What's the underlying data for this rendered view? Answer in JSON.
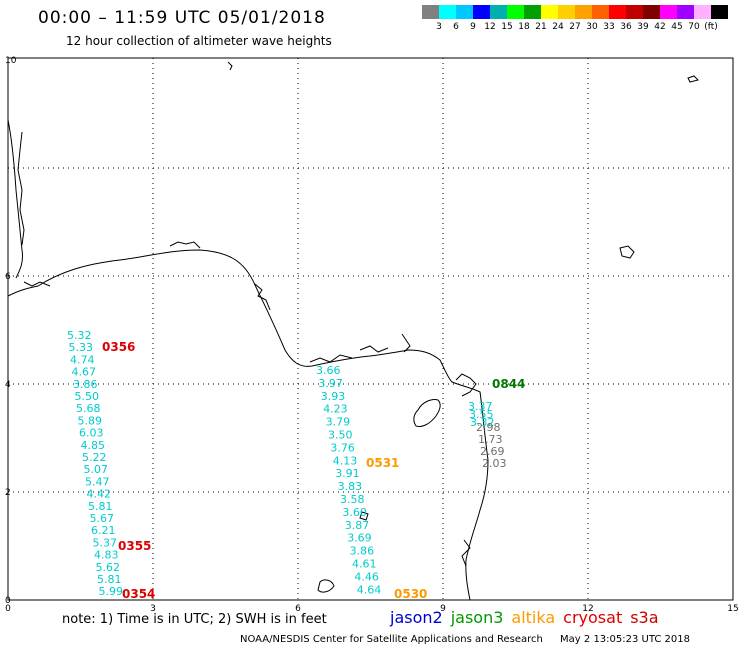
{
  "header": {
    "title": "00:00 – 11:59 UTC 05/01/2018",
    "subtitle": "12 hour collection of altimeter wave heights"
  },
  "color_scale": {
    "colors": [
      "#808080",
      "#00ffff",
      "#00c8ff",
      "#0000ff",
      "#00b0b0",
      "#00ff00",
      "#00a000",
      "#ffff00",
      "#ffd000",
      "#ffa000",
      "#ff6000",
      "#ff0000",
      "#c00000",
      "#800000",
      "#ff00ff",
      "#a000ff",
      "#ffb0ff",
      "#000000"
    ],
    "labels": [
      "3",
      "6",
      "9",
      "12",
      "15",
      "18",
      "21",
      "24",
      "27",
      "30",
      "33",
      "36",
      "39",
      "42",
      "45",
      "70",
      "(ft)"
    ]
  },
  "map": {
    "x_ticks": [
      "0",
      "3",
      "6",
      "9",
      "12",
      "15"
    ],
    "y_ticks": [
      "0",
      "2",
      "4",
      "6",
      "10"
    ],
    "tracks": [
      {
        "color": "#00cccc",
        "values": [
          "5.32",
          "5.33",
          "4.74",
          "4.67",
          "3.86",
          "5.50",
          "5.68",
          "5.89",
          "6.03",
          "4.85",
          "5.22",
          "5.07",
          "5.47",
          "4.42",
          "5.81",
          "5.67",
          "6.21",
          "5.37",
          "4.83",
          "5.62",
          "5.81",
          "5.99"
        ]
      },
      {
        "color": "#00cccc",
        "values": [
          "3.66",
          "3.97",
          "3.93",
          "4.23",
          "3.79",
          "3.50",
          "3.76",
          "4.13",
          "3.91",
          "3.83",
          "3.58",
          "3.60",
          "3.87",
          "3.69",
          "3.86",
          "4.61",
          "4.46",
          "4.64"
        ]
      },
      {
        "color": "#00cccc",
        "values": [
          "3.37",
          "3.55",
          "3.32"
        ]
      },
      {
        "color": "#707070",
        "values": [
          "2.98",
          "1.73",
          "2.69",
          "2.03"
        ]
      }
    ],
    "time_labels": [
      {
        "text": "0356",
        "color": "#dd0000"
      },
      {
        "text": "0355",
        "color": "#dd0000"
      },
      {
        "text": "0354",
        "color": "#dd0000"
      },
      {
        "text": "0531",
        "color": "#ff9900"
      },
      {
        "text": "0530",
        "color": "#ff9900"
      },
      {
        "text": "0844",
        "color": "#007700"
      }
    ]
  },
  "footer": {
    "note": "note:  1) Time is in UTC;  2) SWH is in feet",
    "satellites": [
      {
        "name": "jason2",
        "color": "#0000cc"
      },
      {
        "name": "jason3",
        "color": "#009900"
      },
      {
        "name": "altika",
        "color": "#ff9900"
      },
      {
        "name": "cryosat",
        "color": "#dd0000"
      },
      {
        "name": "s3a",
        "color": "#cc0000"
      }
    ],
    "agency": "NOAA/NESDIS Center for Satellite Applications and Research",
    "timestamp": "May  2 13:05:23 UTC 2018"
  }
}
